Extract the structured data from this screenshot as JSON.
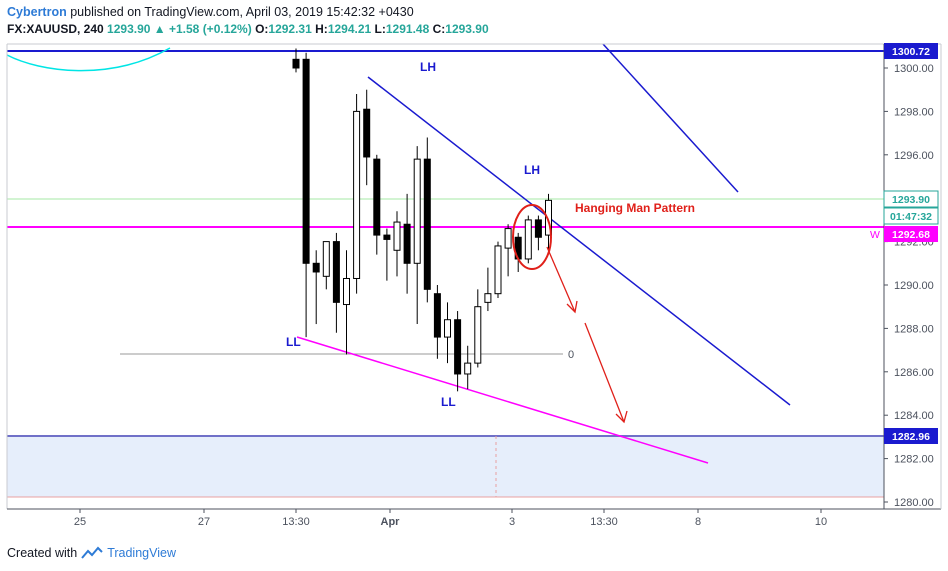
{
  "header": {
    "author": "Cybertron",
    "published": "published on TradingView.com, April 03, 2019 15:42:32 +0430",
    "symbol": "FX:XAUUSD, 240",
    "last": "1293.90",
    "change": "▲ +1.58 (+0.12%)",
    "o_label": "O:",
    "o_value": "1292.31",
    "h_label": "H:",
    "h_value": "1294.21",
    "l_label": "L:",
    "l_value": "1291.48",
    "c_label": "C:",
    "c_value": "1293.90"
  },
  "footer": {
    "prefix": "Created with",
    "brand": "TradingView"
  },
  "colors": {
    "up_candle": "#ffffff",
    "down_candle": "#000000",
    "trendline": "#1a1acf",
    "support": "#ff00ff",
    "arrow": "#e0201a",
    "ma": "#00e5e5",
    "zone": "#e6eefb"
  },
  "chart_data": {
    "type": "candlestick",
    "y_ticks": [
      "1300.00",
      "1298.00",
      "1296.00",
      "1294.00",
      "1292.00",
      "1290.00",
      "1288.00",
      "1286.00",
      "1284.00",
      "1282.00",
      "1280.00"
    ],
    "x_ticks": [
      "25",
      "27",
      "13:30",
      "Apr",
      "3",
      "13:30",
      "8",
      "10"
    ],
    "ylim": [
      1279.6,
      1300.9
    ],
    "candles": [
      {
        "x": 0,
        "o": 1300.4,
        "h": 1300.9,
        "l": 1299.8,
        "c": 1300.0
      },
      {
        "x": 1,
        "o": 1300.4,
        "h": 1300.7,
        "l": 1287.6,
        "c": 1291.0
      },
      {
        "x": 2,
        "o": 1291.0,
        "h": 1291.6,
        "l": 1288.2,
        "c": 1290.6
      },
      {
        "x": 3,
        "o": 1290.4,
        "h": 1292.0,
        "l": 1289.8,
        "c": 1292.0
      },
      {
        "x": 4,
        "o": 1292.0,
        "h": 1292.4,
        "l": 1287.8,
        "c": 1289.2
      },
      {
        "x": 5,
        "o": 1289.1,
        "h": 1291.6,
        "l": 1286.8,
        "c": 1290.3
      },
      {
        "x": 6,
        "o": 1290.3,
        "h": 1298.8,
        "l": 1289.6,
        "c": 1298.0
      },
      {
        "x": 7,
        "o": 1298.1,
        "h": 1299.0,
        "l": 1294.6,
        "c": 1295.9
      },
      {
        "x": 8,
        "o": 1295.8,
        "h": 1296.0,
        "l": 1291.4,
        "c": 1292.3
      },
      {
        "x": 9,
        "o": 1292.3,
        "h": 1292.6,
        "l": 1290.2,
        "c": 1292.1
      },
      {
        "x": 10,
        "o": 1291.6,
        "h": 1293.4,
        "l": 1290.4,
        "c": 1292.9
      },
      {
        "x": 11,
        "o": 1292.8,
        "h": 1294.2,
        "l": 1289.6,
        "c": 1291.0
      },
      {
        "x": 12,
        "o": 1291.0,
        "h": 1296.4,
        "l": 1288.2,
        "c": 1295.8
      },
      {
        "x": 13,
        "o": 1295.8,
        "h": 1296.8,
        "l": 1289.2,
        "c": 1289.8
      },
      {
        "x": 14,
        "o": 1289.6,
        "h": 1290.0,
        "l": 1286.6,
        "c": 1287.6
      },
      {
        "x": 15,
        "o": 1287.6,
        "h": 1289.2,
        "l": 1286.4,
        "c": 1288.4
      },
      {
        "x": 16,
        "o": 1288.4,
        "h": 1288.8,
        "l": 1285.1,
        "c": 1285.9
      },
      {
        "x": 17,
        "o": 1285.9,
        "h": 1287.2,
        "l": 1285.2,
        "c": 1286.4
      },
      {
        "x": 18,
        "o": 1286.4,
        "h": 1289.8,
        "l": 1286.2,
        "c": 1289.0
      },
      {
        "x": 19,
        "o": 1289.2,
        "h": 1290.8,
        "l": 1288.8,
        "c": 1289.6
      },
      {
        "x": 20,
        "o": 1289.6,
        "h": 1292.0,
        "l": 1289.4,
        "c": 1291.8
      },
      {
        "x": 21,
        "o": 1291.7,
        "h": 1292.8,
        "l": 1290.4,
        "c": 1292.6
      },
      {
        "x": 22,
        "o": 1292.2,
        "h": 1292.4,
        "l": 1290.6,
        "c": 1291.2
      },
      {
        "x": 23,
        "o": 1291.2,
        "h": 1293.2,
        "l": 1291.0,
        "c": 1293.0
      },
      {
        "x": 24,
        "o": 1293.0,
        "h": 1293.2,
        "l": 1291.6,
        "c": 1292.2
      },
      {
        "x": 25,
        "o": 1292.3,
        "h": 1294.2,
        "l": 1291.5,
        "c": 1293.9
      }
    ],
    "price_labels": [
      {
        "value": "1300.72",
        "price": 1300.72,
        "kind": "line"
      },
      {
        "value": "1293.90",
        "price": 1293.9,
        "kind": "last"
      },
      {
        "value": "01:47:32",
        "price": 1293.05,
        "kind": "timer"
      },
      {
        "value": "1292.68",
        "price": 1292.68,
        "kind": "support"
      },
      {
        "value": "1282.96",
        "price": 1282.96,
        "kind": "line"
      }
    ],
    "annotations": [
      {
        "text": "LH",
        "color": "#1a1acf"
      },
      {
        "text": "LH",
        "color": "#1a1acf"
      },
      {
        "text": "Hanging Man Pattern",
        "color": "#e0201a"
      },
      {
        "text": "LL",
        "color": "#1a1acf"
      },
      {
        "text": "LL",
        "color": "#1a1acf"
      },
      {
        "text": "0",
        "color": "#787b86"
      },
      {
        "text": "W",
        "color": "#ff00ff"
      }
    ]
  }
}
